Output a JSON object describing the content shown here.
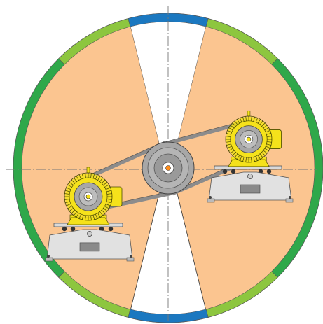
{
  "colors": {
    "background": "#ffffff",
    "ring_dark_green": "#2fa84a",
    "ring_light_green": "#8dc63f",
    "ring_blue": "#1b78c0",
    "sector_fill": "#fbc590",
    "center_lines": "#777777",
    "belt": "#8c8c8c",
    "pulley": "#a7a7a7",
    "hub": "#ff8c1a",
    "motor_yellow": "#f5e21b",
    "motor_outline": "#4a4a00",
    "base_grey": "#e1e1e1",
    "base_outline": "#555555",
    "bolt_dark": "#333333"
  },
  "icons": {
    "left_motor": "electric-motor-icon",
    "right_motor": "electric-motor-icon",
    "pulley": "pulley-icon",
    "belt": "drive-belt-icon"
  }
}
